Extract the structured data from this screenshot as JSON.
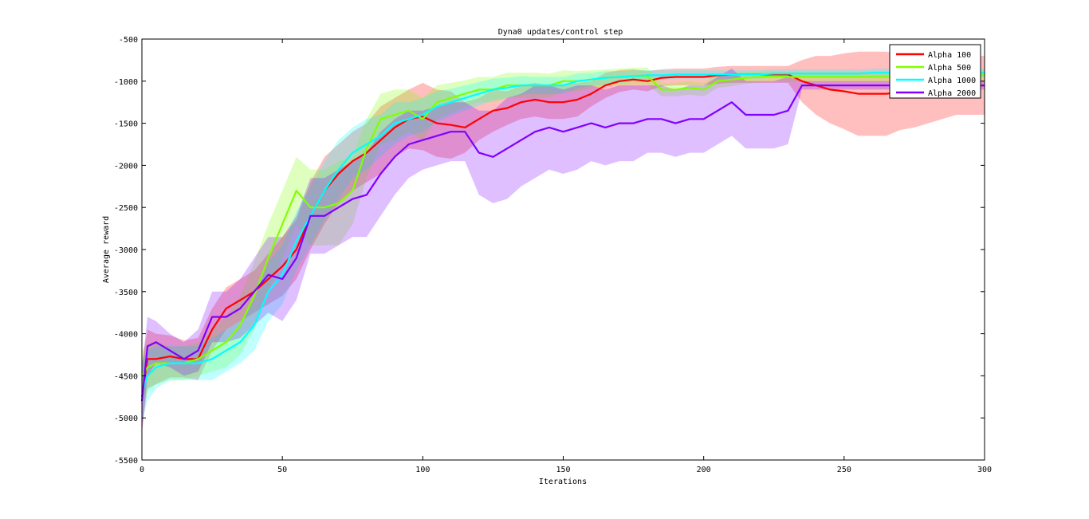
{
  "chart_data": {
    "type": "line",
    "title": "Dyna0 updates/control step",
    "xlabel": "Iterations",
    "ylabel": "Average reward",
    "xlim": [
      0,
      300
    ],
    "ylim": [
      -5500,
      -500
    ],
    "xticks": [
      "0",
      "50",
      "100",
      "150",
      "200",
      "250",
      "300"
    ],
    "yticks": [
      "-500",
      "-1000",
      "-1500",
      "-2000",
      "-2500",
      "-3000",
      "-3500",
      "-4000",
      "-4500",
      "-5000",
      "-5500"
    ],
    "grid": false,
    "legend_position": "top-right",
    "x": [
      0,
      2,
      5,
      10,
      15,
      20,
      25,
      30,
      35,
      40,
      45,
      50,
      55,
      60,
      65,
      70,
      75,
      80,
      85,
      90,
      95,
      100,
      105,
      110,
      115,
      120,
      125,
      130,
      135,
      140,
      145,
      150,
      155,
      160,
      165,
      170,
      175,
      180,
      185,
      190,
      195,
      200,
      205,
      210,
      215,
      220,
      225,
      230,
      235,
      240,
      245,
      250,
      255,
      260,
      265,
      270,
      275,
      280,
      285,
      290,
      295,
      300
    ],
    "series": [
      {
        "name": "Alpha 100",
        "color": "#ff0000",
        "values": [
          -4750,
          -4300,
          -4300,
          -4270,
          -4300,
          -4300,
          -3950,
          -3700,
          -3600,
          -3500,
          -3350,
          -3200,
          -3000,
          -2600,
          -2300,
          -2100,
          -1950,
          -1850,
          -1700,
          -1550,
          -1450,
          -1420,
          -1500,
          -1520,
          -1550,
          -1450,
          -1350,
          -1320,
          -1250,
          -1220,
          -1250,
          -1250,
          -1220,
          -1150,
          -1050,
          -1000,
          -980,
          -1000,
          -960,
          -950,
          -950,
          -950,
          -930,
          -920,
          -920,
          -920,
          -920,
          -920,
          -1000,
          -1050,
          -1100,
          -1120,
          -1150,
          -1150,
          -1150,
          -1130,
          -1100,
          -1100,
          -1050,
          -1050,
          -1050,
          -1050
        ],
        "band": [
          400,
          350,
          300,
          250,
          220,
          250,
          250,
          250,
          250,
          250,
          300,
          350,
          350,
          400,
          400,
          350,
          350,
          350,
          400,
          350,
          350,
          400,
          400,
          400,
          300,
          250,
          250,
          200,
          200,
          200,
          200,
          200,
          200,
          150,
          150,
          130,
          120,
          120,
          100,
          100,
          100,
          100,
          100,
          100,
          100,
          100,
          100,
          100,
          250,
          350,
          400,
          450,
          500,
          500,
          500,
          450,
          450,
          400,
          400,
          350,
          350,
          350
        ]
      },
      {
        "name": "Alpha 500",
        "color": "#80ff00",
        "values": [
          -4500,
          -4400,
          -4350,
          -4350,
          -4350,
          -4300,
          -4200,
          -4100,
          -3900,
          -3550,
          -3100,
          -2700,
          -2300,
          -2500,
          -2500,
          -2450,
          -2300,
          -1800,
          -1450,
          -1400,
          -1350,
          -1450,
          -1250,
          -1200,
          -1150,
          -1100,
          -1100,
          -1050,
          -1050,
          -1050,
          -1050,
          -1000,
          -1000,
          -980,
          -960,
          -950,
          -940,
          -940,
          -1100,
          -1100,
          -1080,
          -1100,
          -1000,
          -980,
          -960,
          -950,
          -940,
          -950,
          -950,
          -950,
          -950,
          -950,
          -950,
          -950,
          -950,
          -950,
          -950,
          -940,
          -930,
          -930,
          -930,
          -930
        ],
        "band": [
          300,
          280,
          250,
          200,
          200,
          200,
          250,
          300,
          350,
          400,
          400,
          400,
          400,
          450,
          450,
          500,
          400,
          350,
          300,
          300,
          250,
          250,
          200,
          180,
          160,
          150,
          150,
          150,
          150,
          150,
          140,
          130,
          120,
          110,
          100,
          100,
          100,
          100,
          80,
          80,
          80,
          80,
          80,
          80,
          70,
          60,
          60,
          60,
          60,
          60,
          60,
          60,
          60,
          60,
          60,
          60,
          60,
          60,
          60,
          60,
          60,
          60
        ]
      },
      {
        "name": "Alpha 1000",
        "color": "#00ffff",
        "values": [
          -4700,
          -4500,
          -4400,
          -4350,
          -4350,
          -4350,
          -4300,
          -4200,
          -4100,
          -3900,
          -3500,
          -3300,
          -2900,
          -2600,
          -2300,
          -2050,
          -1850,
          -1750,
          -1650,
          -1500,
          -1450,
          -1400,
          -1300,
          -1250,
          -1200,
          -1150,
          -1100,
          -1080,
          -1050,
          -1050,
          -1050,
          -1050,
          -1000,
          -980,
          -960,
          -950,
          -940,
          -930,
          -930,
          -920,
          -920,
          -920,
          -920,
          -920,
          -920,
          -920,
          -910,
          -910,
          -910,
          -910,
          -910,
          -910,
          -910,
          -900,
          -900,
          -900,
          -900,
          -900,
          -900,
          -900,
          -900,
          -900
        ],
        "band": [
          350,
          300,
          250,
          200,
          200,
          200,
          250,
          250,
          250,
          300,
          350,
          350,
          350,
          350,
          350,
          350,
          300,
          300,
          250,
          250,
          200,
          200,
          180,
          160,
          150,
          140,
          130,
          120,
          110,
          100,
          100,
          100,
          90,
          80,
          80,
          70,
          70,
          60,
          60,
          50,
          50,
          50,
          50,
          50,
          50,
          50,
          50,
          50,
          50,
          50,
          50,
          50,
          50,
          50,
          50,
          50,
          50,
          50,
          50,
          50,
          50,
          50
        ]
      },
      {
        "name": "Alpha 2000",
        "color": "#8000ff",
        "values": [
          -4800,
          -4150,
          -4100,
          -4200,
          -4300,
          -4200,
          -3800,
          -3800,
          -3700,
          -3500,
          -3300,
          -3350,
          -3100,
          -2600,
          -2600,
          -2500,
          -2400,
          -2350,
          -2100,
          -1900,
          -1750,
          -1700,
          -1650,
          -1600,
          -1600,
          -1850,
          -1900,
          -1800,
          -1700,
          -1600,
          -1550,
          -1600,
          -1550,
          -1500,
          -1550,
          -1500,
          -1500,
          -1450,
          -1450,
          -1500,
          -1450,
          -1450,
          -1350,
          -1250,
          -1400,
          -1400,
          -1400,
          -1350,
          -1050,
          -1050,
          -1050,
          -1050,
          -1050,
          -1050,
          -1050,
          -1050,
          -1050,
          -1050,
          -1050,
          -1050,
          -1050,
          -1050
        ],
        "band": [
          400,
          350,
          250,
          200,
          200,
          250,
          300,
          300,
          350,
          400,
          450,
          500,
          500,
          450,
          450,
          450,
          450,
          500,
          500,
          450,
          400,
          350,
          350,
          350,
          350,
          500,
          550,
          600,
          550,
          550,
          500,
          500,
          500,
          450,
          450,
          450,
          450,
          400,
          400,
          400,
          400,
          400,
          400,
          400,
          400,
          400,
          400,
          400,
          50,
          50,
          50,
          50,
          50,
          50,
          50,
          50,
          50,
          50,
          50,
          50,
          50,
          50
        ]
      }
    ]
  }
}
